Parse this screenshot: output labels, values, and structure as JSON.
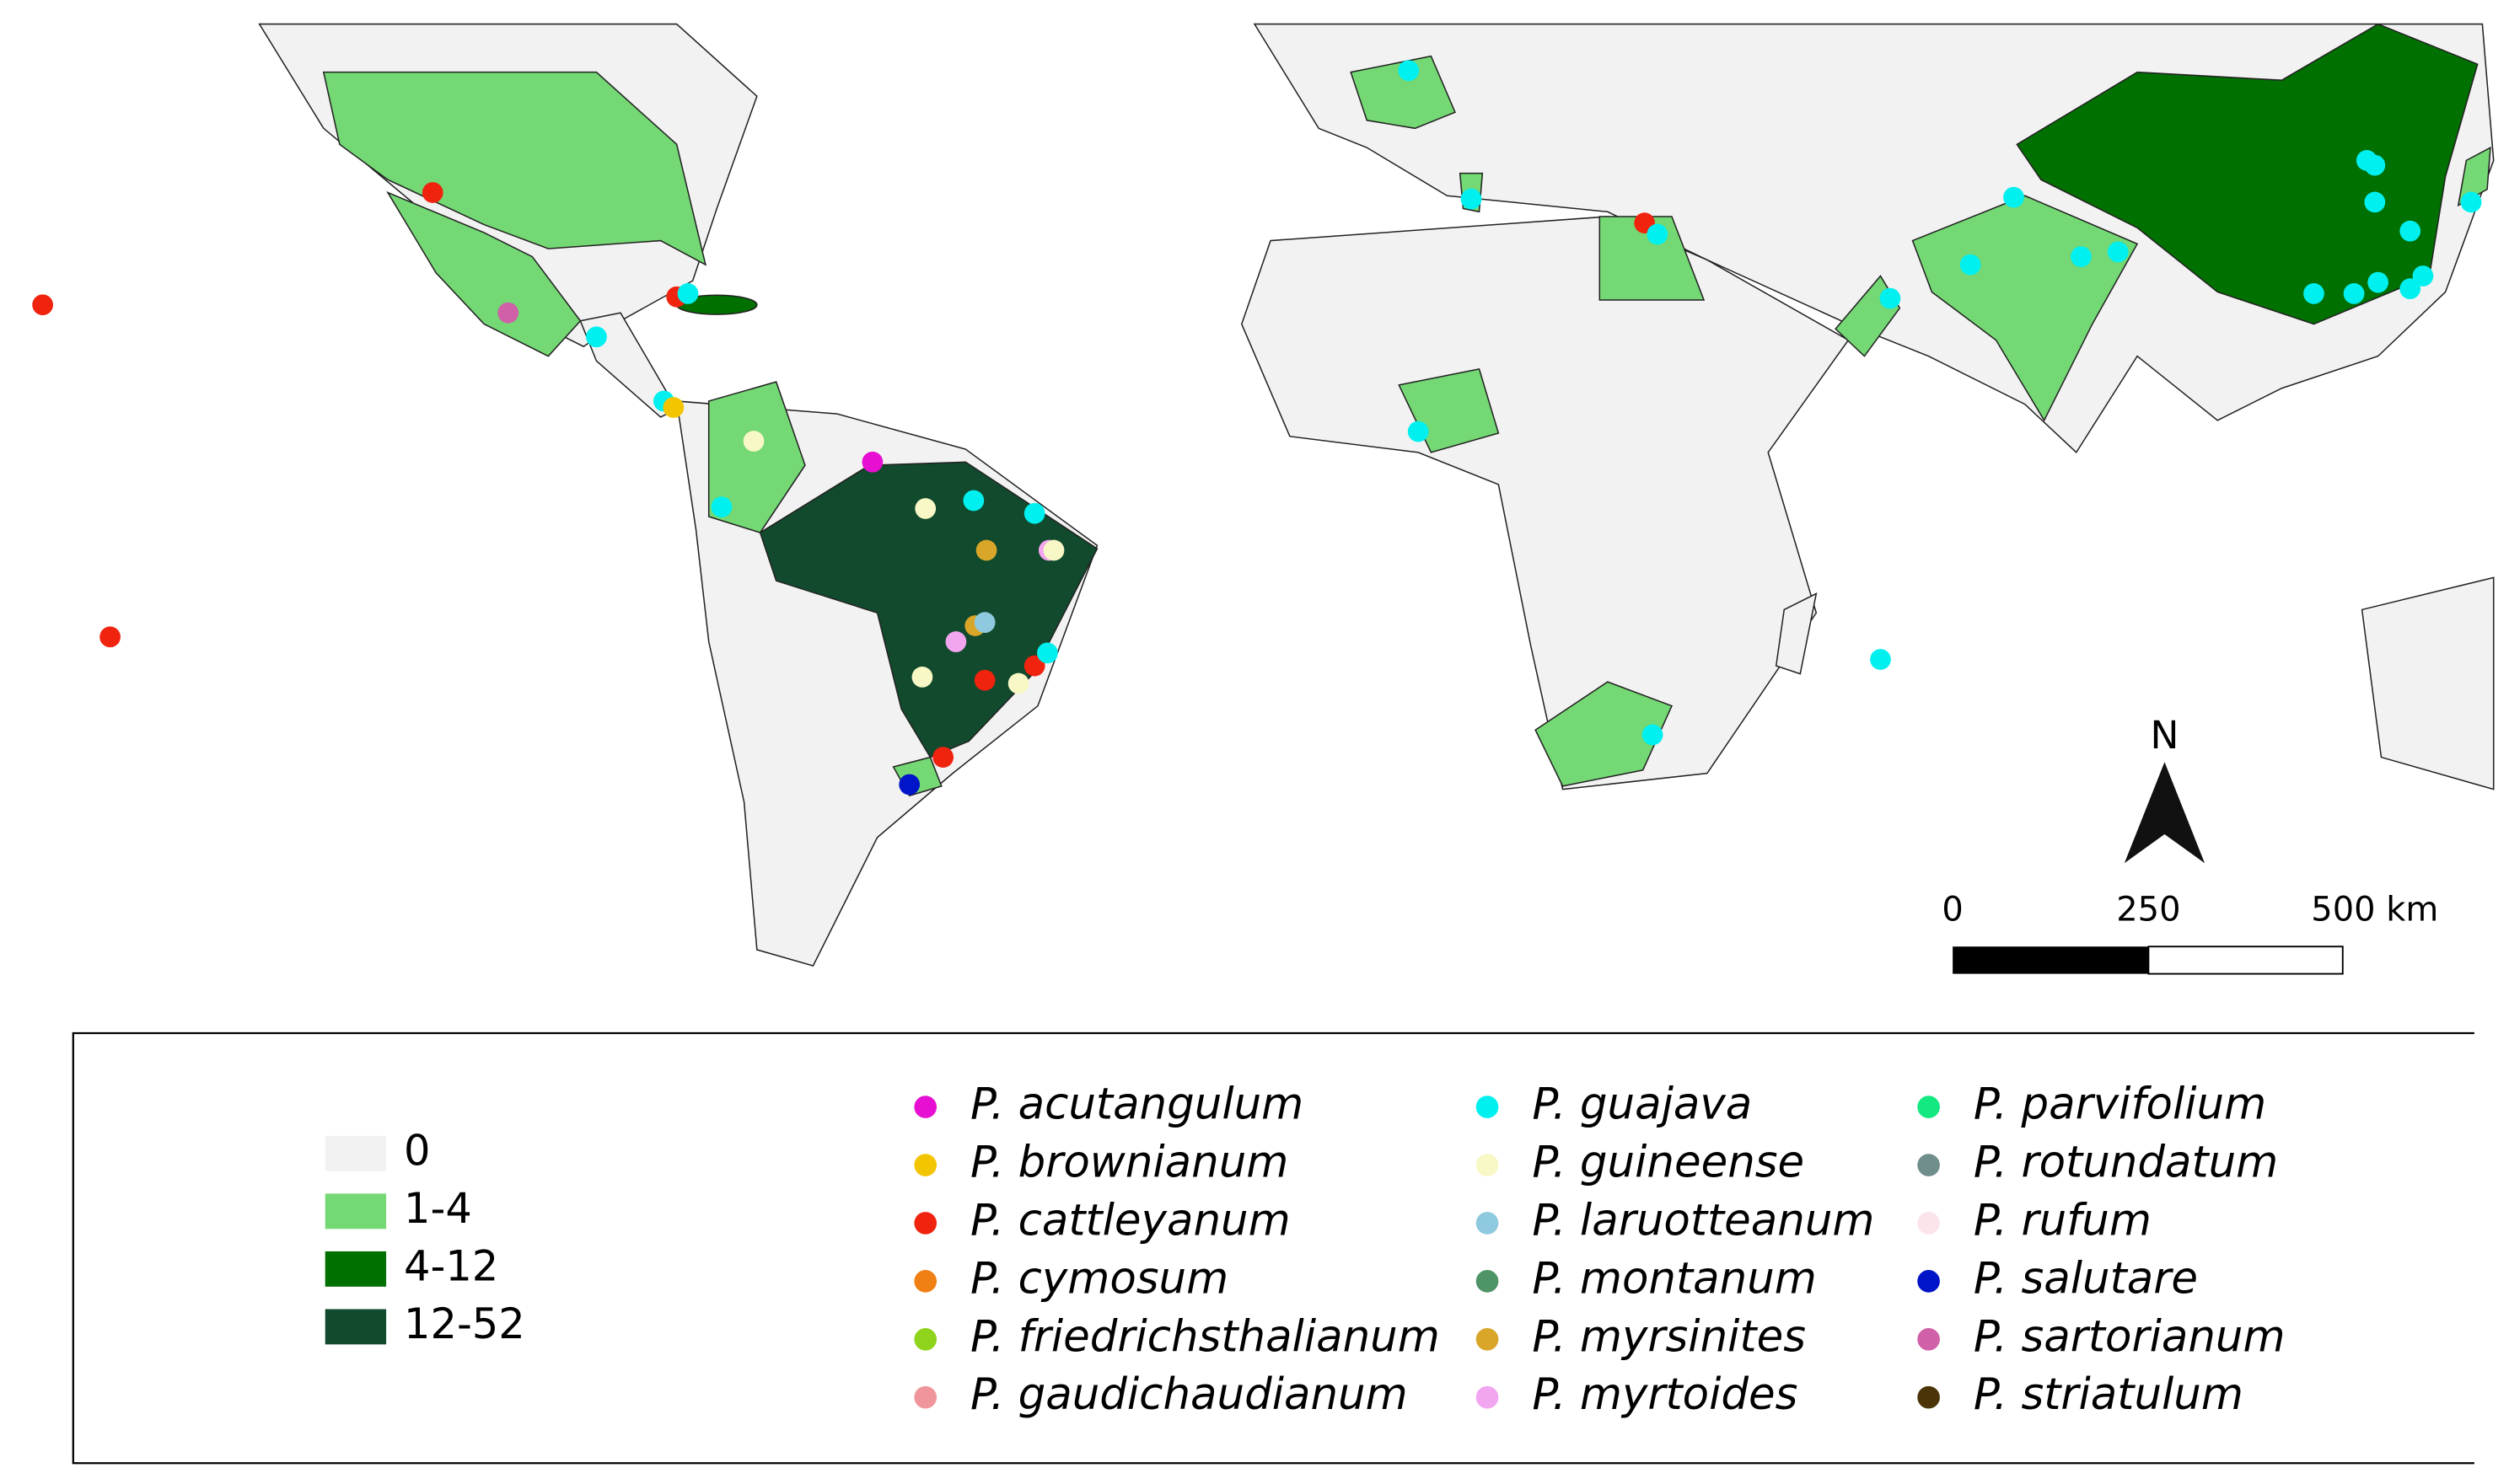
{
  "map": {
    "choropleth_legend": [
      {
        "label": "0",
        "color": "#f2f2f2"
      },
      {
        "label": "1-4",
        "color": "#74d874"
      },
      {
        "label": "4-12",
        "color": "#007000"
      },
      {
        "label": "12-52",
        "color": "#114a2c"
      }
    ],
    "species": [
      {
        "name": "P. acutangulum",
        "color": "#e60fd2"
      },
      {
        "name": "P. brownianum",
        "color": "#f2c500"
      },
      {
        "name": "P. cattleyanum",
        "color": "#f0230f"
      },
      {
        "name": "P. cymosum",
        "color": "#f07f14"
      },
      {
        "name": "P. friedrichsthalianum",
        "color": "#8fd31c"
      },
      {
        "name": "P. gaudichaudianum",
        "color": "#f0959b"
      },
      {
        "name": "P. guajava",
        "color": "#00f0f0"
      },
      {
        "name": "P. guineense",
        "color": "#f8f7c6"
      },
      {
        "name": "P. laruotteanum",
        "color": "#8ec9e0"
      },
      {
        "name": "P. montanum",
        "color": "#4e9467"
      },
      {
        "name": "P. myrsinites",
        "color": "#d9a62a"
      },
      {
        "name": "P. myrtoides",
        "color": "#f2a6ef"
      },
      {
        "name": "P. parvifolium",
        "color": "#14e880"
      },
      {
        "name": "P. rotundatum",
        "color": "#6f8e8c"
      },
      {
        "name": "P. rufum",
        "color": "#fbe4ea"
      },
      {
        "name": "P. salutare",
        "color": "#0014c8"
      },
      {
        "name": "P. sartorianum",
        "color": "#d060a8"
      },
      {
        "name": "P. striatulum",
        "color": "#4a3408"
      }
    ],
    "north": "N",
    "scale_bar": [
      "0",
      "250",
      "500 km"
    ]
  }
}
